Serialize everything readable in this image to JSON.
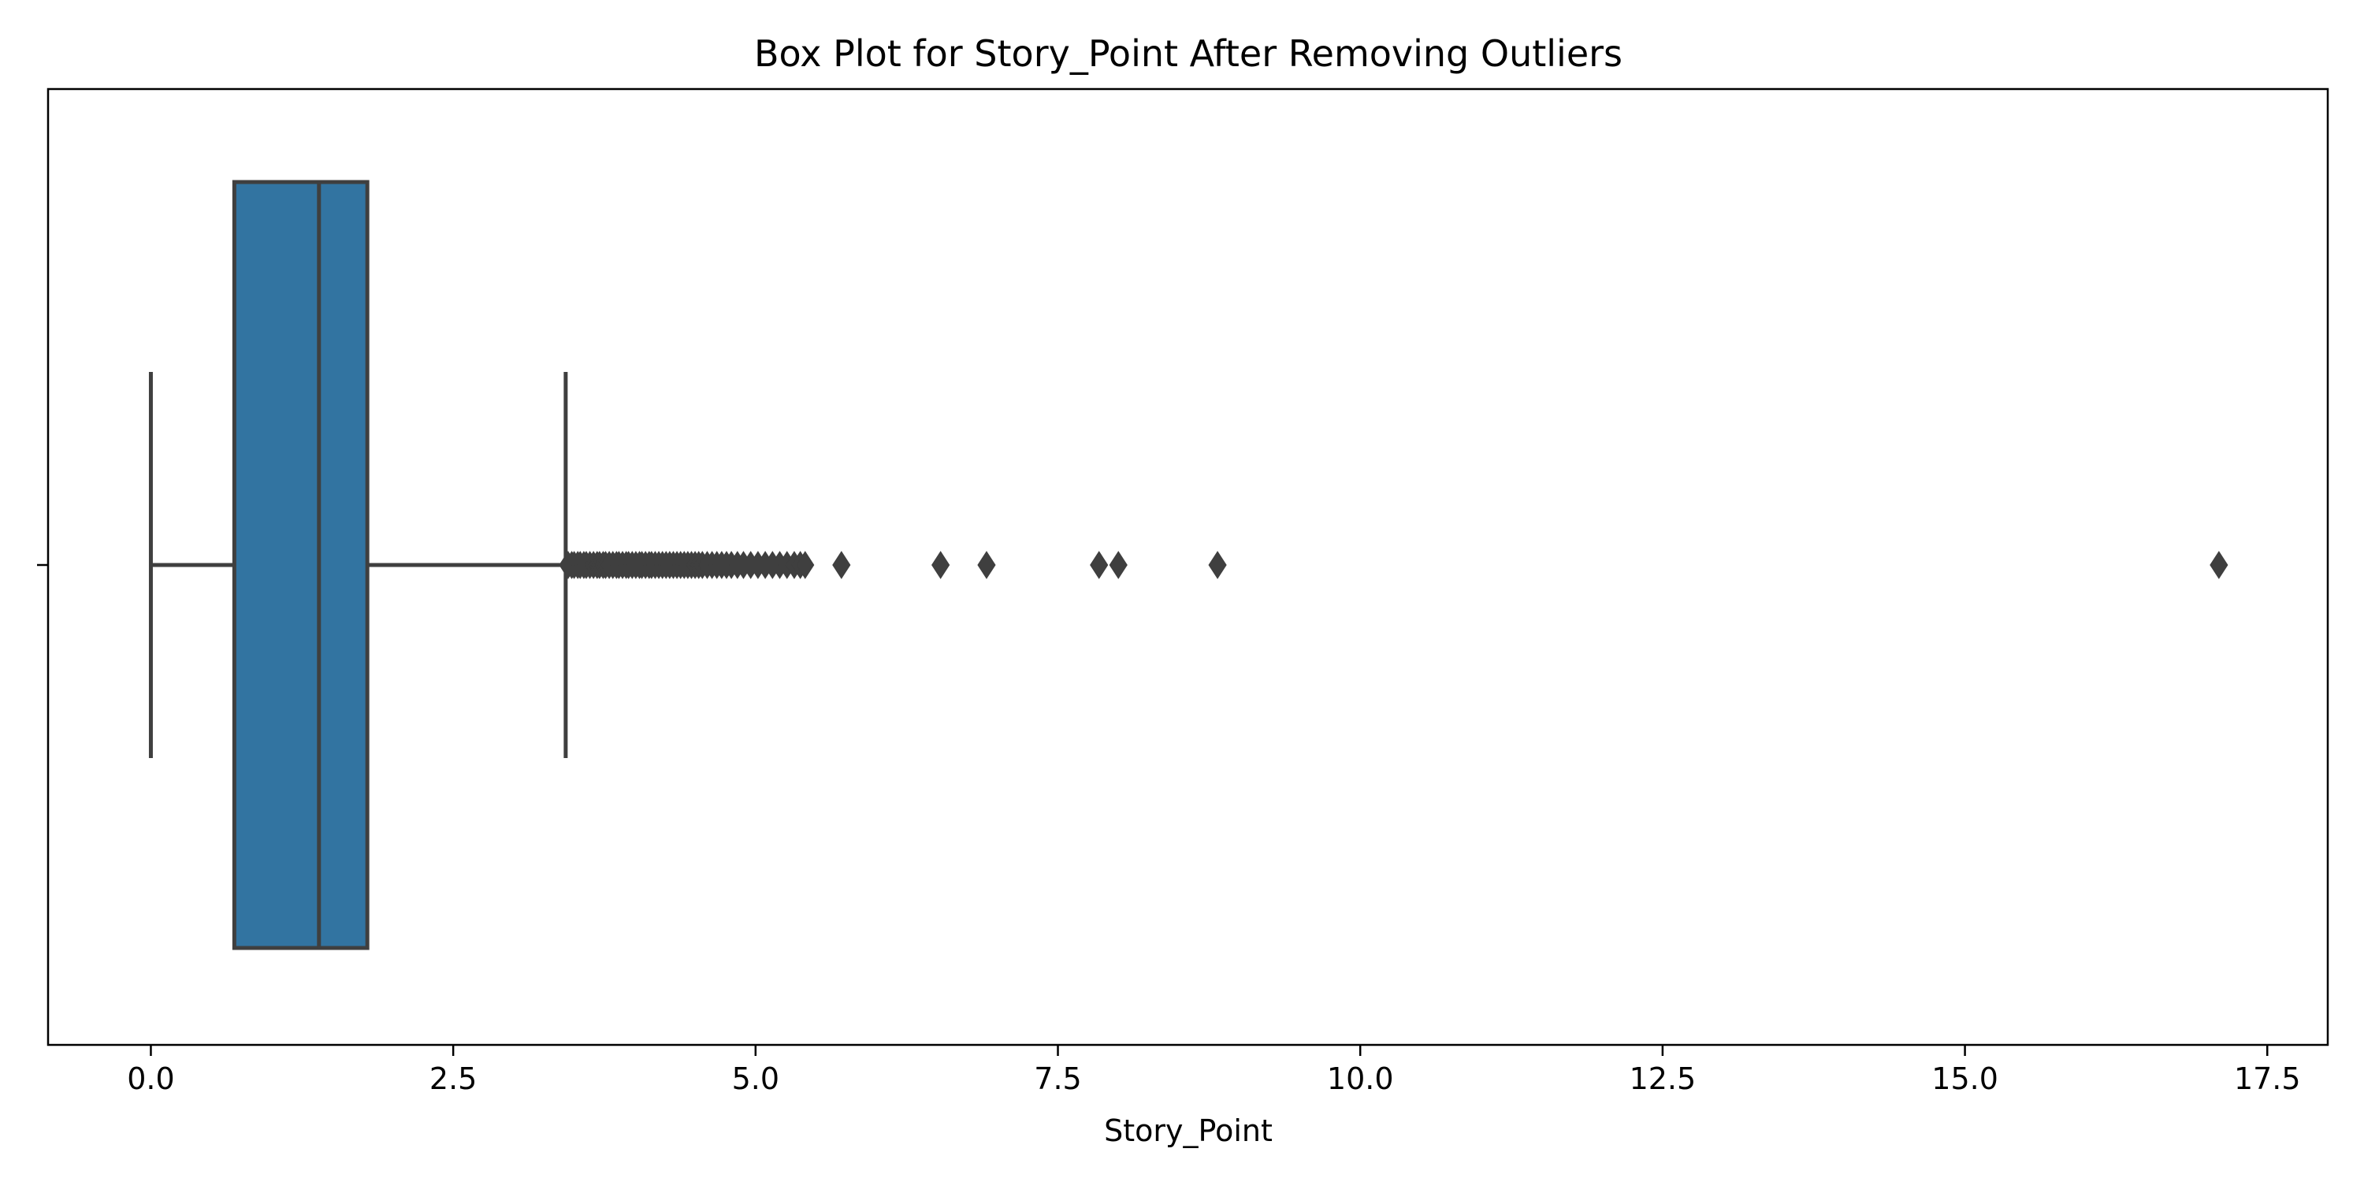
{
  "chart_data": {
    "type": "box",
    "title": "Box Plot for Story_Point After Removing Outliers",
    "xlabel": "Story_Point",
    "ylabel": "",
    "orientation": "horizontal",
    "xlim": [
      -0.85,
      18.0
    ],
    "x_ticks": [
      0.0,
      2.5,
      5.0,
      7.5,
      10.0,
      12.5,
      15.0,
      17.5
    ],
    "x_tick_labels": [
      "0.0",
      "2.5",
      "5.0",
      "7.5",
      "10.0",
      "12.5",
      "15.0",
      "17.5"
    ],
    "y_ticks": [
      ""
    ],
    "grid": false,
    "box": {
      "whisker_low": 0.0,
      "q1": 0.69,
      "median": 1.39,
      "q3": 1.79,
      "whisker_high": 3.43
    },
    "outliers": [
      3.45,
      3.48,
      3.5,
      3.53,
      3.55,
      3.58,
      3.6,
      3.63,
      3.66,
      3.69,
      3.71,
      3.74,
      3.76,
      3.79,
      3.82,
      3.85,
      3.87,
      3.9,
      3.93,
      3.95,
      3.98,
      4.01,
      4.04,
      4.06,
      4.09,
      4.12,
      4.14,
      4.17,
      4.2,
      4.23,
      4.26,
      4.29,
      4.32,
      4.35,
      4.38,
      4.41,
      4.44,
      4.47,
      4.5,
      4.53,
      4.56,
      4.6,
      4.64,
      4.68,
      4.72,
      4.76,
      4.8,
      4.85,
      4.9,
      4.96,
      5.02,
      5.08,
      5.14,
      5.2,
      5.26,
      5.32,
      5.37,
      5.41,
      5.71,
      6.53,
      6.91,
      7.84,
      8.0,
      8.82,
      17.1
    ],
    "colors": {
      "box_fill": "#3274a1",
      "line": "#3f3f3f",
      "frame": "#000000"
    }
  }
}
